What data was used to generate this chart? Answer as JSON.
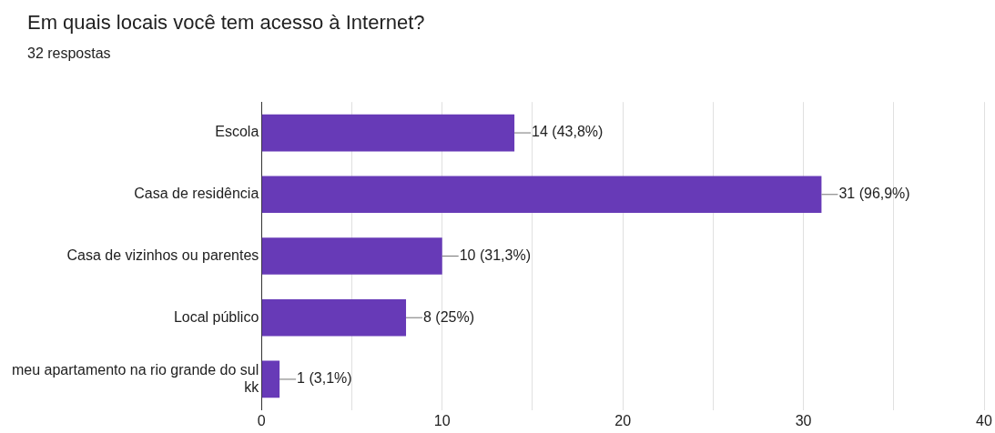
{
  "chart_data": {
    "type": "bar",
    "orientation": "horizontal",
    "title": "Em quais locais você tem acesso à Internet?",
    "subtitle": "32 respostas",
    "categories": [
      "Escola",
      "Casa de residência",
      "Casa de vizinhos ou parentes",
      "Local público",
      "meu apartamento na rio grande do sul kk"
    ],
    "values": [
      14,
      31,
      10,
      8,
      1
    ],
    "color": "#673ab7",
    "value_labels": [
      "14 (43,8%)",
      "31 (96,9%)",
      "10 (31,3%)",
      "8 (25%)",
      "1 (3,1%)"
    ],
    "xlim": [
      0,
      40
    ],
    "xticks": [
      0,
      {
        "value": 5,
        "label": null
      },
      10,
      {
        "value": 15,
        "label": null
      },
      20,
      {
        "value": 25,
        "label": null
      },
      30,
      {
        "value": 35,
        "label": null
      },
      40
    ],
    "grid": "x",
    "legend": false
  }
}
